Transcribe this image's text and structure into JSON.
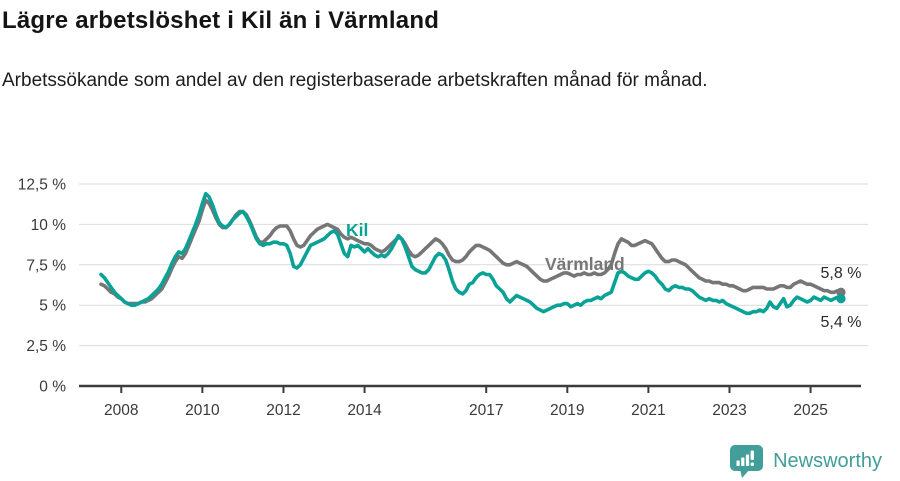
{
  "header": {
    "title": "Lägre arbetslöshet i Kil än i Värmland",
    "subtitle": "Arbetssökande som andel av den registerbaserade arbetskraften månad för månad."
  },
  "chart_data": {
    "type": "line",
    "x_start": "2007-07",
    "x_end": "2025-10",
    "x_ticks": [
      2008,
      2010,
      2012,
      2014,
      2017,
      2019,
      2021,
      2023,
      2025
    ],
    "x_tick_labels": [
      "2008",
      "2010",
      "2012",
      "2014",
      "2017",
      "2019",
      "2021",
      "2023",
      "2025"
    ],
    "y_ticks": [
      {
        "value": 0,
        "label": "0 %"
      },
      {
        "value": 2.5,
        "label": "2,5 %"
      },
      {
        "value": 5,
        "label": "5 %"
      },
      {
        "value": 7.5,
        "label": "7,5 %"
      },
      {
        "value": 10,
        "label": "10 %"
      },
      {
        "value": 12.5,
        "label": "12,5 %"
      }
    ],
    "ylim": [
      0,
      12.5
    ],
    "grid": true,
    "legend": "inline",
    "series": [
      {
        "name": "Kil",
        "color": "#0aa296",
        "values": [
          6.9,
          6.7,
          6.4,
          6.1,
          5.8,
          5.6,
          5.4,
          5.2,
          5.1,
          5.0,
          5.0,
          5.1,
          5.2,
          5.3,
          5.4,
          5.6,
          5.8,
          6.0,
          6.3,
          6.7,
          7.1,
          7.6,
          8.0,
          8.3,
          8.2,
          8.5,
          9.0,
          9.5,
          10.0,
          10.6,
          11.3,
          11.9,
          11.7,
          11.2,
          10.6,
          10.1,
          9.9,
          9.8,
          10.0,
          10.3,
          10.5,
          10.7,
          10.8,
          10.5,
          10.1,
          9.6,
          9.1,
          8.8,
          8.7,
          8.8,
          8.8,
          8.9,
          8.9,
          8.8,
          8.8,
          8.7,
          8.2,
          7.4,
          7.3,
          7.5,
          7.9,
          8.3,
          8.7,
          8.8,
          8.9,
          9.0,
          9.1,
          9.3,
          9.5,
          9.6,
          9.4,
          8.8,
          8.2,
          8.0,
          8.7,
          8.6,
          8.7,
          8.5,
          8.3,
          8.5,
          8.3,
          8.1,
          8.0,
          8.1,
          8.0,
          8.2,
          8.5,
          8.9,
          9.3,
          9.1,
          8.6,
          8.0,
          7.4,
          7.2,
          7.1,
          7.0,
          7.0,
          7.2,
          7.6,
          8.0,
          8.2,
          8.1,
          7.8,
          7.2,
          6.5,
          6.0,
          5.8,
          5.7,
          5.9,
          6.3,
          6.4,
          6.7,
          6.9,
          7.0,
          6.9,
          6.9,
          6.6,
          6.2,
          6.0,
          5.8,
          5.4,
          5.2,
          5.4,
          5.6,
          5.5,
          5.4,
          5.3,
          5.2,
          5.0,
          4.8,
          4.7,
          4.6,
          4.7,
          4.8,
          4.9,
          5.0,
          5.0,
          5.1,
          5.1,
          4.9,
          5.0,
          5.1,
          5.0,
          5.2,
          5.3,
          5.3,
          5.4,
          5.5,
          5.4,
          5.6,
          5.7,
          5.8,
          6.4,
          7.0,
          7.1,
          7.0,
          6.8,
          6.7,
          6.6,
          6.6,
          6.8,
          7.0,
          7.1,
          7.0,
          6.8,
          6.5,
          6.3,
          6.0,
          5.9,
          6.1,
          6.2,
          6.1,
          6.1,
          6.0,
          6.0,
          5.9,
          5.7,
          5.5,
          5.4,
          5.3,
          5.4,
          5.3,
          5.3,
          5.2,
          5.3,
          5.1,
          5.0,
          4.9,
          4.8,
          4.7,
          4.6,
          4.5,
          4.5,
          4.6,
          4.6,
          4.7,
          4.6,
          4.8,
          5.2,
          4.9,
          4.8,
          5.1,
          5.4,
          4.9,
          5.0,
          5.3,
          5.5,
          5.4,
          5.3,
          5.2,
          5.3,
          5.5,
          5.4,
          5.3,
          5.5,
          5.4,
          5.3,
          5.4,
          5.5,
          5.4
        ]
      },
      {
        "name": "Värmland",
        "color": "#767676",
        "values": [
          6.3,
          6.2,
          6.0,
          5.8,
          5.7,
          5.5,
          5.4,
          5.2,
          5.1,
          5.1,
          5.1,
          5.1,
          5.2,
          5.2,
          5.3,
          5.4,
          5.6,
          5.8,
          6.0,
          6.4,
          6.8,
          7.3,
          7.7,
          8.0,
          7.9,
          8.2,
          8.7,
          9.2,
          9.7,
          10.2,
          10.9,
          11.5,
          11.3,
          10.9,
          10.4,
          10.0,
          9.8,
          9.8,
          10.0,
          10.3,
          10.6,
          10.8,
          10.8,
          10.6,
          10.2,
          9.7,
          9.2,
          8.9,
          8.9,
          9.1,
          9.3,
          9.6,
          9.8,
          9.9,
          9.9,
          9.9,
          9.6,
          9.1,
          8.7,
          8.6,
          8.7,
          9.0,
          9.3,
          9.5,
          9.7,
          9.8,
          9.9,
          10.0,
          9.9,
          9.8,
          9.7,
          9.4,
          9.2,
          9.1,
          9.2,
          9.1,
          9.0,
          8.9,
          8.8,
          8.8,
          8.7,
          8.5,
          8.4,
          8.3,
          8.4,
          8.6,
          8.8,
          9.0,
          9.2,
          9.1,
          8.8,
          8.4,
          8.1,
          8.0,
          8.1,
          8.3,
          8.5,
          8.7,
          8.9,
          9.1,
          9.0,
          8.8,
          8.5,
          8.1,
          7.8,
          7.7,
          7.7,
          7.8,
          8.0,
          8.3,
          8.5,
          8.7,
          8.7,
          8.6,
          8.5,
          8.4,
          8.2,
          8.0,
          7.8,
          7.6,
          7.5,
          7.5,
          7.6,
          7.7,
          7.6,
          7.5,
          7.4,
          7.2,
          7.0,
          6.8,
          6.6,
          6.5,
          6.5,
          6.6,
          6.7,
          6.8,
          6.9,
          7.0,
          7.0,
          6.9,
          6.8,
          6.9,
          6.9,
          7.0,
          6.9,
          6.9,
          7.0,
          6.9,
          6.9,
          7.0,
          7.2,
          7.5,
          8.2,
          8.8,
          9.1,
          9.0,
          8.9,
          8.7,
          8.7,
          8.8,
          8.9,
          9.0,
          8.9,
          8.8,
          8.5,
          8.2,
          7.9,
          7.7,
          7.7,
          7.8,
          7.8,
          7.7,
          7.6,
          7.5,
          7.3,
          7.1,
          6.9,
          6.7,
          6.6,
          6.5,
          6.5,
          6.4,
          6.4,
          6.4,
          6.3,
          6.3,
          6.2,
          6.2,
          6.1,
          6.0,
          5.9,
          5.9,
          6.0,
          6.1,
          6.1,
          6.1,
          6.1,
          6.0,
          6.0,
          6.0,
          6.1,
          6.2,
          6.2,
          6.1,
          6.1,
          6.3,
          6.4,
          6.5,
          6.4,
          6.3,
          6.3,
          6.2,
          6.1,
          6.0,
          5.9,
          5.9,
          5.8,
          5.8,
          5.9,
          5.8
        ]
      }
    ],
    "end_labels": {
      "varmland": "5,8 %",
      "kil": "5,4 %"
    }
  },
  "branding": {
    "logo_text": "Newsworthy",
    "logo_icon": "newsworthy-speech-bubble-bar-chart-icon",
    "color": "#429e98"
  }
}
